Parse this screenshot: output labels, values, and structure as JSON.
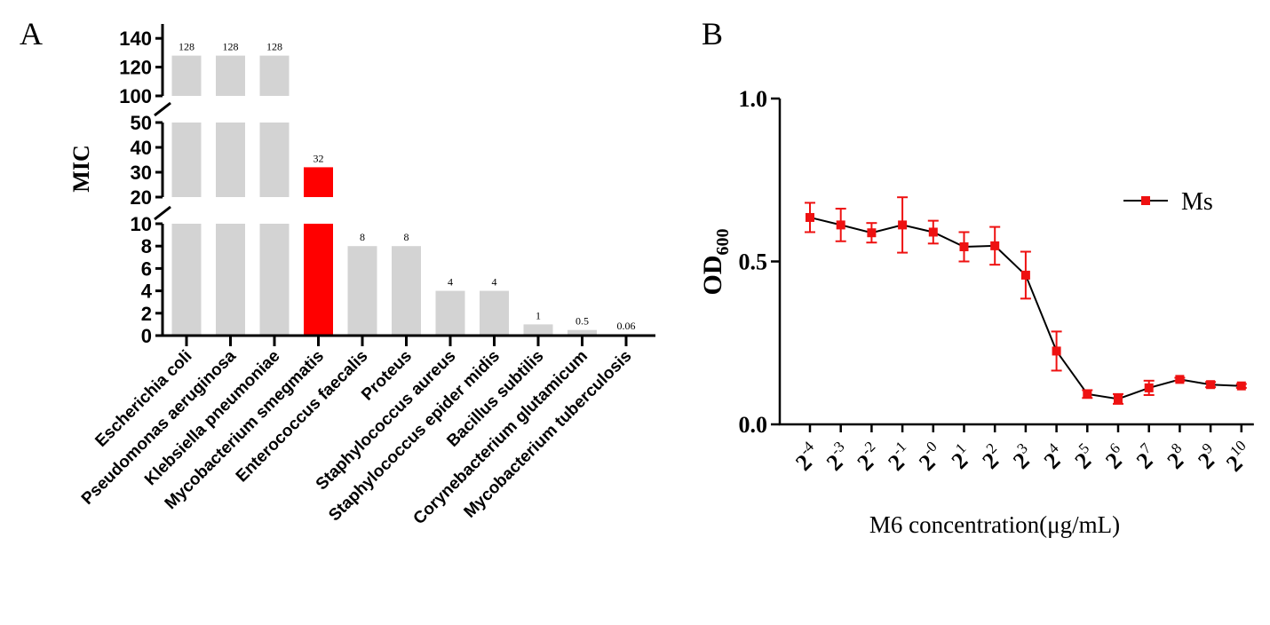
{
  "panels": {
    "a": {
      "label": "A"
    },
    "b": {
      "label": "B"
    }
  },
  "colors": {
    "bar_default": "#d3d3d3",
    "bar_highlight": "#ff0000",
    "line": "#000000",
    "marker": "#ee1111",
    "errorbar": "#ee1111",
    "axis": "#000000"
  },
  "chart_data": [
    {
      "panel": "A",
      "type": "bar",
      "ylabel": "MIC",
      "categories": [
        "Escherichia coli",
        "Pseudomonas aeruginosa",
        "Klebsiella pneumoniae",
        "Mycobacterium smegmatis",
        "Enterococcus faecalis",
        "Proteus",
        "Staphylococcus aureus",
        "Staphylococcus epider midis",
        "Bacillus subtilis",
        "Corynebacterium glutamicum",
        "Mycobacterium tuberculosis"
      ],
      "values": [
        128,
        128,
        128,
        32,
        8,
        8,
        4,
        4,
        1,
        0.5,
        0.06
      ],
      "value_labels": [
        "128",
        "128",
        "128",
        "32",
        "8",
        "8",
        "4",
        "4",
        "1",
        "0.5",
        "0.06"
      ],
      "highlight_index": 3,
      "broken_axis_segments": [
        {
          "range": [
            0,
            10
          ],
          "ticks": [
            0,
            2,
            4,
            6,
            8,
            10
          ],
          "tick_labels": [
            "0",
            "2",
            "4",
            "6",
            "8",
            "10"
          ]
        },
        {
          "range": [
            20,
            50
          ],
          "ticks": [
            20,
            30,
            40,
            50
          ],
          "tick_labels": [
            "20",
            "30",
            "40",
            "50"
          ]
        },
        {
          "range": [
            100,
            150
          ],
          "ticks": [
            100,
            120,
            140
          ],
          "tick_labels": [
            "100",
            "120",
            "140"
          ]
        }
      ]
    },
    {
      "panel": "B",
      "type": "line",
      "xlabel": "M6 concentration(μg/mL)",
      "ylabel_main": "OD",
      "ylabel_sub": "600",
      "ylim": [
        0,
        1.0
      ],
      "yticks": [
        0,
        0.5,
        1.0
      ],
      "ytick_labels": [
        "0.0",
        "0.5",
        "1.0"
      ],
      "x_base": "2",
      "x_exponents": [
        "-4",
        "-3",
        "-2",
        "-1",
        "-0",
        "1",
        "2",
        "3",
        "4",
        "5",
        "6",
        "7",
        "8",
        "9",
        "10"
      ],
      "series": [
        {
          "name": "Ms",
          "values": [
            0.635,
            0.612,
            0.588,
            0.612,
            0.59,
            0.545,
            0.548,
            0.458,
            0.225,
            0.093,
            0.078,
            0.112,
            0.138,
            0.122,
            0.118
          ],
          "errors": [
            0.045,
            0.05,
            0.03,
            0.085,
            0.035,
            0.045,
            0.058,
            0.072,
            0.06,
            0.012,
            0.015,
            0.022,
            0.005,
            0.008,
            0.006
          ]
        }
      ],
      "legend_position": "upper-right"
    }
  ]
}
